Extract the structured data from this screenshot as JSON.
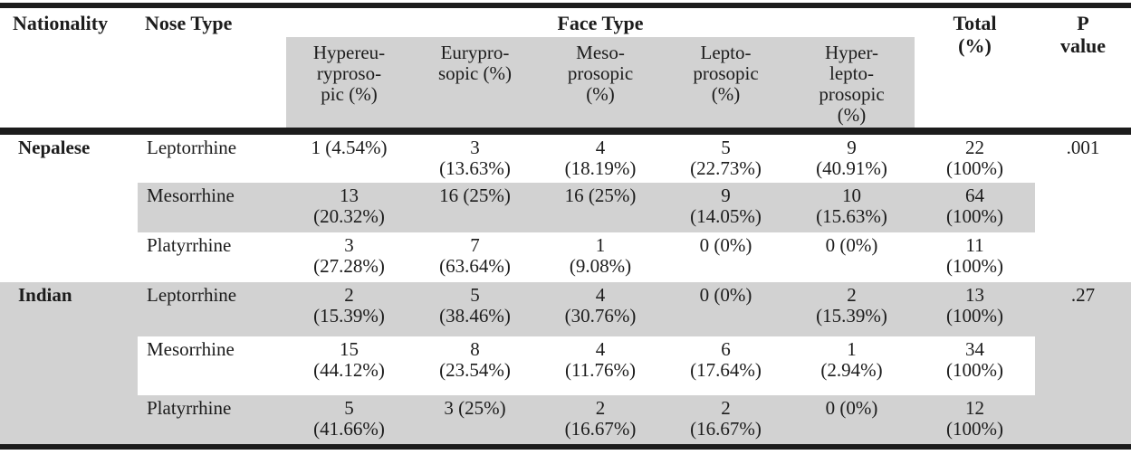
{
  "colors": {
    "band_gray": "#d2d2d2",
    "rule_black": "#1c1c1c"
  },
  "table": {
    "header": {
      "nationality": "Nationality",
      "nose_type": "Nose Type",
      "face_type": "Face Type",
      "total": "Total\n(%)",
      "p_value": "P\nvalue"
    },
    "face_subcolumns": [
      "Hypereu-\nryproso-\npic (%)",
      "Eurypro-\nsopic (%)",
      "Meso-\nprosopic\n(%)",
      "Lepto-\nprosopic\n(%)",
      "Hyper-\nlepto-\nprosopic\n(%)"
    ],
    "rows": [
      {
        "nationality": "Nepalese",
        "nose_type": "Leptorrhine",
        "values": [
          "1 (4.54%)",
          "3\n(13.63%)",
          "4\n(18.19%)",
          "5\n(22.73%)",
          "9\n(40.91%)"
        ],
        "total": "22\n(100%)",
        "p_value": ".001"
      },
      {
        "nationality": "",
        "nose_type": "Mesorrhine",
        "values": [
          "13\n(20.32%)",
          "16 (25%)",
          "16 (25%)",
          "9\n(14.05%)",
          "10\n(15.63%)"
        ],
        "total": "64\n(100%)",
        "p_value": ""
      },
      {
        "nationality": "",
        "nose_type": "Platyrrhine",
        "values": [
          "3\n(27.28%)",
          "7\n(63.64%)",
          "1\n(9.08%)",
          "0 (0%)",
          "0 (0%)"
        ],
        "total": "11\n(100%)",
        "p_value": ""
      },
      {
        "nationality": "Indian",
        "nose_type": "Leptorrhine",
        "values": [
          "2\n(15.39%)",
          "5\n(38.46%)",
          "4\n(30.76%)",
          "0 (0%)",
          "2\n(15.39%)"
        ],
        "total": "13\n(100%)",
        "p_value": ".27"
      },
      {
        "nationality": "",
        "nose_type": "Mesorrhine",
        "values": [
          "15\n(44.12%)",
          "8\n(23.54%)",
          "4\n(11.76%)",
          "6\n(17.64%)",
          "1\n(2.94%)"
        ],
        "total": "34\n(100%)",
        "p_value": ""
      },
      {
        "nationality": "",
        "nose_type": "Platyrrhine",
        "values": [
          "5\n(41.66%)",
          "3 (25%)",
          "2\n(16.67%)",
          "2\n(16.67%)",
          "0 (0%)"
        ],
        "total": "12\n(100%)",
        "p_value": ""
      }
    ]
  }
}
